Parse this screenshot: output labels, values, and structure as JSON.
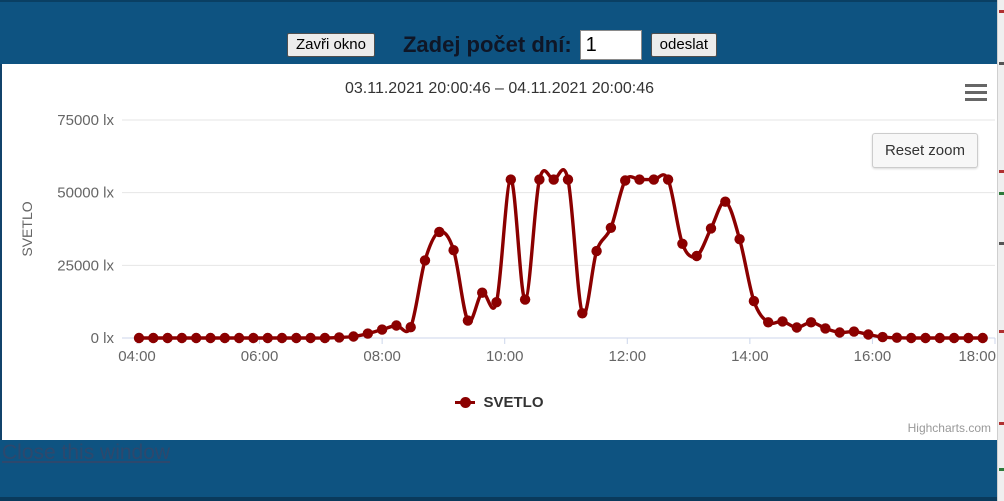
{
  "header": {
    "close_button": "Zavři okno",
    "days_label": "Zadej počet dní:",
    "days_value": "1",
    "submit_button": "odeslat"
  },
  "chart": {
    "title": "03.11.2021 20:00:46 – 04.11.2021 20:00:46",
    "reset_zoom_label": "Reset zoom",
    "credits": "Highcharts.com"
  },
  "chart_data": {
    "type": "line",
    "title": "03.11.2021 20:00:46 – 04.11.2021 20:00:46",
    "xlabel": "",
    "ylabel": "SVETLO",
    "unit": "lx",
    "ylim": [
      0,
      75000
    ],
    "grid": true,
    "legend_position": "bottom",
    "yticks": [
      {
        "value": 0,
        "label": "0 lx"
      },
      {
        "value": 25000,
        "label": "25000 lx"
      },
      {
        "value": 50000,
        "label": "50000 lx"
      },
      {
        "value": 75000,
        "label": "75000 lx"
      }
    ],
    "xticks": [
      "04:00",
      "06:00",
      "08:00",
      "10:00",
      "12:00",
      "14:00",
      "16:00",
      "18:00"
    ],
    "series": [
      {
        "name": "SVETLO",
        "color": "#8b0000",
        "times": [
          "04:02",
          "04:16",
          "04:30",
          "04:44",
          "04:58",
          "05:12",
          "05:26",
          "05:40",
          "05:54",
          "06:08",
          "06:22",
          "06:36",
          "06:50",
          "07:04",
          "07:18",
          "07:32",
          "07:46",
          "08:00",
          "08:14",
          "08:28",
          "08:42",
          "08:56",
          "09:10",
          "09:24",
          "09:38",
          "09:52",
          "10:06",
          "10:20",
          "10:34",
          "10:48",
          "11:02",
          "11:16",
          "11:30",
          "11:44",
          "11:58",
          "12:12",
          "12:26",
          "12:40",
          "12:54",
          "13:08",
          "13:22",
          "13:36",
          "13:50",
          "14:04",
          "14:18",
          "14:32",
          "14:46",
          "15:00",
          "15:14",
          "15:28",
          "15:42",
          "15:56",
          "16:10",
          "16:24",
          "16:38",
          "16:52",
          "17:06",
          "17:20",
          "17:34",
          "17:48"
        ],
        "values": [
          0,
          0,
          0,
          0,
          0,
          0,
          0,
          0,
          0,
          0,
          0,
          0,
          0,
          0,
          200,
          500,
          1500,
          2900,
          4300,
          3700,
          26700,
          36500,
          30200,
          6000,
          15600,
          12300,
          54500,
          13200,
          54500,
          54500,
          54500,
          8500,
          29900,
          37900,
          54200,
          54500,
          54500,
          54500,
          32400,
          28200,
          37700,
          46900,
          34000,
          12700,
          5400,
          5700,
          3600,
          5400,
          3300,
          1900,
          2200,
          1200,
          300,
          100,
          0,
          0,
          0,
          0,
          0,
          0
        ]
      }
    ]
  },
  "footer": {
    "close_link": "Close this window"
  },
  "colors": {
    "header_bg": "#0e5381",
    "grid": "#e6e6e6",
    "axis": "#ccd6eb",
    "tick_label": "#666666",
    "title": "#333333",
    "series": "#8b0000",
    "credits": "#999999"
  }
}
